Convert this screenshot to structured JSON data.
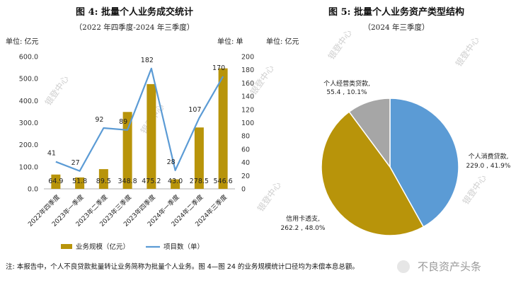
{
  "chart_data": [
    {
      "type": "bar+line",
      "title": "图 4: 批量个人业务成交统计",
      "subtitle": "（2022 年四季度-2024 年三季度）",
      "y_left_unit": "单位: 亿元",
      "y_right_unit": "单位: 单",
      "y_left_range": [
        0,
        600
      ],
      "y_right_range": [
        0,
        200
      ],
      "y_left_ticks": [
        "0.0",
        "100.0",
        "200.0",
        "300.0",
        "400.0",
        "500.0",
        "600.0"
      ],
      "y_right_ticks": [
        "0",
        "20",
        "40",
        "60",
        "80",
        "100",
        "120",
        "140",
        "160",
        "180",
        "200"
      ],
      "categories": [
        "2022年四季度",
        "2023年一季度",
        "2023年二季度",
        "2023年三季度",
        "2023年四季度",
        "2024年一季度",
        "2024年二季度",
        "2024年三季度"
      ],
      "series": [
        {
          "name": "业务规模（亿元）",
          "type": "bar",
          "color": "#b8940a",
          "values": [
            64.9,
            51.8,
            89.5,
            348.8,
            475.2,
            43.0,
            278.5,
            546.6
          ],
          "labels": [
            "64.9",
            "51.8",
            "89.5",
            "348.8",
            "475.2",
            "43.0",
            "278.5",
            "546.6"
          ]
        },
        {
          "name": "项目数（单）",
          "type": "line",
          "color": "#5b9bd5",
          "values": [
            41,
            27,
            92,
            89,
            182,
            28,
            107,
            170
          ],
          "labels": [
            "41",
            "27",
            "92",
            "89",
            "182",
            "28",
            "107",
            "170"
          ]
        }
      ]
    },
    {
      "type": "pie",
      "title": "图 5: 批量个人业务资产类型结构",
      "subtitle": "（2024 年三季度）",
      "unit": "单位: 亿元",
      "slices": [
        {
          "name": "个人消费贷款,",
          "value": 229.0,
          "percent": 41.9,
          "detail": "229.0 , 41.9%",
          "color": "#5b9bd5"
        },
        {
          "name": "信用卡透支,",
          "value": 262.2,
          "percent": 48.0,
          "detail": "262.2 , 48.0%",
          "color": "#b8940a"
        },
        {
          "name": "个人经营类贷款,",
          "value": 55.4,
          "percent": 10.1,
          "detail": "55.4 , 10.1%",
          "color": "#a6a6a6"
        }
      ]
    }
  ],
  "note": "注: 本报告中，个人不良贷款批量转让业务简称为批量个人业务。图 4—图 24 的业务规模统计口径均为未偿本息总额。",
  "watermark": "银登中心",
  "source_tag": "不良资产头条"
}
